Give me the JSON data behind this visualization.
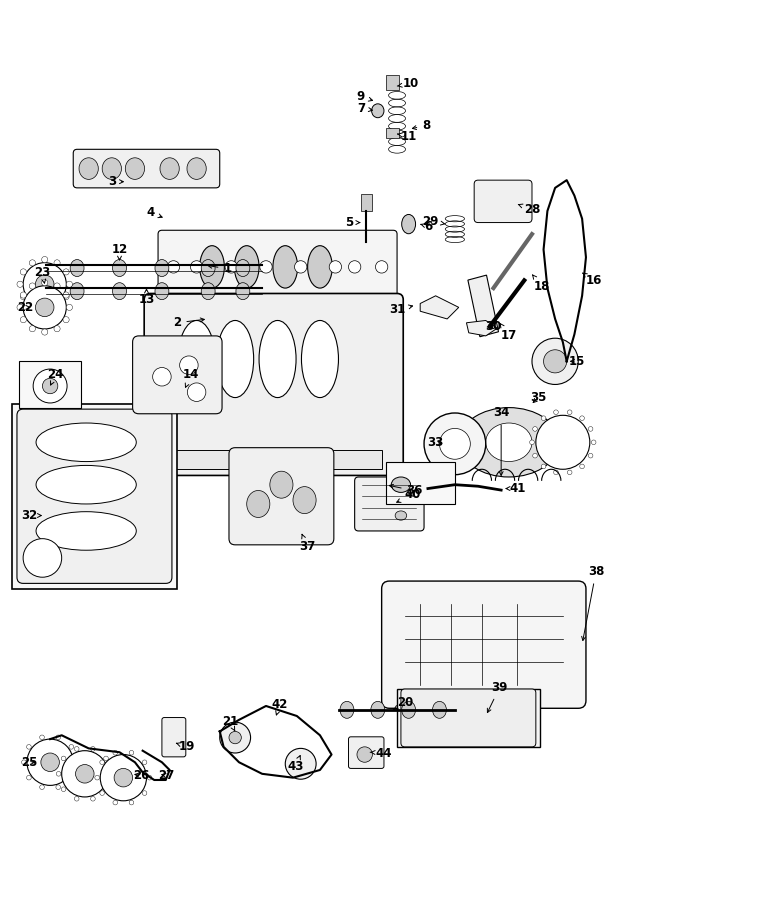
{
  "bg_color": "#ffffff",
  "fig_width": 7.71,
  "fig_height": 9.0,
  "dpi": 100,
  "label_data": {
    "1": [
      0.295,
      0.735,
      0.265,
      0.74
    ],
    "2": [
      0.23,
      0.665,
      0.27,
      0.67
    ],
    "3": [
      0.145,
      0.848,
      0.165,
      0.848
    ],
    "4": [
      0.195,
      0.808,
      0.215,
      0.8
    ],
    "5": [
      0.453,
      0.795,
      0.468,
      0.795
    ],
    "6": [
      0.555,
      0.79,
      0.545,
      0.793
    ],
    "7": [
      0.468,
      0.943,
      0.488,
      0.94
    ],
    "8": [
      0.553,
      0.921,
      0.53,
      0.916
    ],
    "9": [
      0.468,
      0.958,
      0.488,
      0.952
    ],
    "10": [
      0.533,
      0.975,
      0.515,
      0.972
    ],
    "11": [
      0.53,
      0.907,
      0.515,
      0.91
    ],
    "12": [
      0.155,
      0.76,
      0.155,
      0.745
    ],
    "13": [
      0.19,
      0.695,
      0.19,
      0.71
    ],
    "14": [
      0.248,
      0.598,
      0.24,
      0.58
    ],
    "15": [
      0.748,
      0.615,
      0.735,
      0.615
    ],
    "16": [
      0.77,
      0.72,
      0.755,
      0.73
    ],
    "17": [
      0.66,
      0.648,
      0.648,
      0.665
    ],
    "18": [
      0.703,
      0.712,
      0.69,
      0.728
    ],
    "19": [
      0.243,
      0.115,
      0.228,
      0.12
    ],
    "20": [
      0.525,
      0.172,
      0.51,
      0.163
    ],
    "21": [
      0.298,
      0.148,
      0.305,
      0.135
    ],
    "22": [
      0.033,
      0.685,
      0.04,
      0.685
    ],
    "23": [
      0.055,
      0.73,
      0.058,
      0.715
    ],
    "24": [
      0.072,
      0.598,
      0.065,
      0.583
    ],
    "25": [
      0.038,
      0.095,
      0.05,
      0.095
    ],
    "26": [
      0.183,
      0.078,
      0.17,
      0.08
    ],
    "27": [
      0.215,
      0.078,
      0.205,
      0.08
    ],
    "28": [
      0.69,
      0.812,
      0.668,
      0.82
    ],
    "29": [
      0.558,
      0.797,
      0.578,
      0.793
    ],
    "30": [
      0.64,
      0.66,
      0.63,
      0.658
    ],
    "31": [
      0.515,
      0.682,
      0.54,
      0.688
    ],
    "32": [
      0.038,
      0.415,
      0.055,
      0.415
    ],
    "33": [
      0.565,
      0.51,
      0.578,
      0.508
    ],
    "34": [
      0.65,
      0.548,
      0.65,
      0.462
    ],
    "35": [
      0.698,
      0.568,
      0.688,
      0.558
    ],
    "36": [
      0.538,
      0.447,
      0.5,
      0.455
    ],
    "37": [
      0.398,
      0.375,
      0.39,
      0.395
    ],
    "38": [
      0.773,
      0.342,
      0.755,
      0.248
    ],
    "39": [
      0.648,
      0.192,
      0.63,
      0.155
    ],
    "40": [
      0.535,
      0.442,
      0.51,
      0.43
    ],
    "41": [
      0.672,
      0.45,
      0.655,
      0.45
    ],
    "42": [
      0.363,
      0.17,
      0.358,
      0.155
    ],
    "43": [
      0.383,
      0.09,
      0.39,
      0.105
    ],
    "44": [
      0.498,
      0.107,
      0.48,
      0.108
    ]
  }
}
